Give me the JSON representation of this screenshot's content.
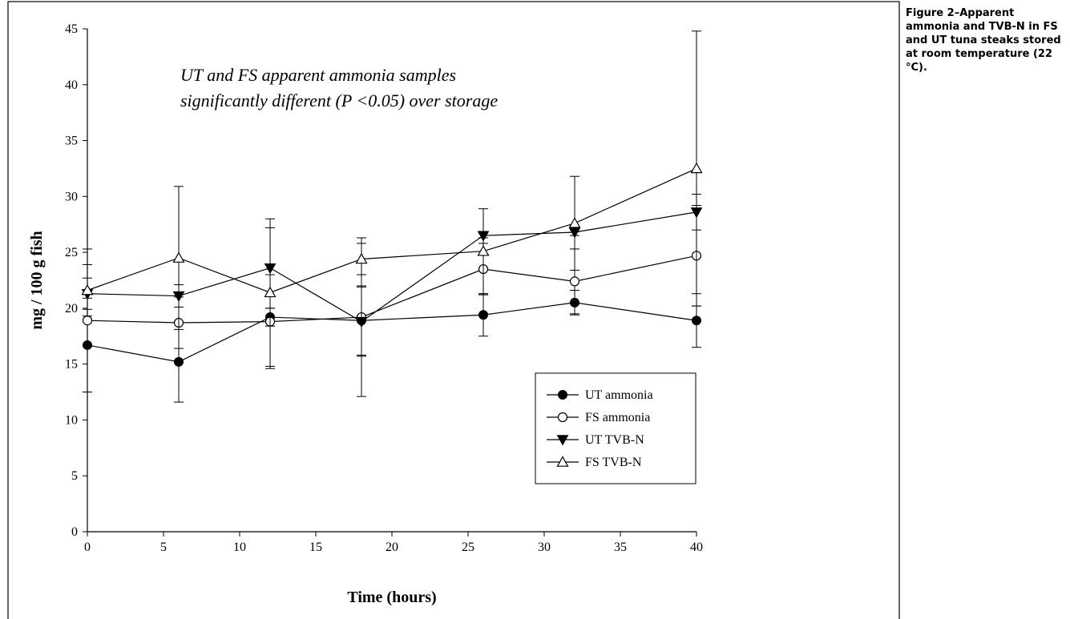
{
  "caption": "Figure 2–Apparent ammonia and TVB-N in FS and UT tuna steaks stored at room temperature (22 °C).",
  "chart_data": {
    "type": "line",
    "xlabel": "Time (hours)",
    "ylabel": "mg / 100 g fish",
    "xlim": [
      0,
      40
    ],
    "ylim": [
      0,
      45
    ],
    "xticks": [
      0,
      5,
      10,
      15,
      20,
      25,
      30,
      35,
      40
    ],
    "yticks": [
      0,
      5,
      10,
      15,
      20,
      25,
      30,
      35,
      40,
      45
    ],
    "grid": false,
    "legend_position": "lower-right",
    "annotation": [
      "UT and FS apparent ammonia samples",
      "significantly different (P <0.05) over storage"
    ],
    "series": [
      {
        "name": "UT ammonia",
        "marker": "circle-filled",
        "x": [
          0,
          6,
          12,
          18,
          26,
          32,
          40
        ],
        "y": [
          16.7,
          15.2,
          19.2,
          18.9,
          19.4,
          20.5,
          18.9
        ],
        "err": [
          4.2,
          3.6,
          0.8,
          3.1,
          1.9,
          1.1,
          2.4
        ]
      },
      {
        "name": "FS ammonia",
        "marker": "circle-open",
        "x": [
          0,
          6,
          12,
          18,
          26,
          32,
          40
        ],
        "y": [
          18.9,
          18.7,
          18.8,
          19.2,
          23.5,
          22.4,
          24.7
        ],
        "err": [
          6.4,
          2.3,
          4.2,
          7.1,
          2.3,
          2.9,
          4.5
        ]
      },
      {
        "name": "UT TVB-N",
        "marker": "triangle-down-filled",
        "x": [
          0,
          6,
          12,
          18,
          26,
          32,
          40
        ],
        "y": [
          21.3,
          21.1,
          23.6,
          18.8,
          26.5,
          26.8,
          28.6
        ],
        "err": [
          1.4,
          1.0,
          3.6,
          3.1,
          0.2,
          0.3,
          1.6
        ]
      },
      {
        "name": "FS TVB-N",
        "marker": "triangle-up-open",
        "x": [
          0,
          6,
          12,
          18,
          26,
          32,
          40
        ],
        "y": [
          21.6,
          24.5,
          21.4,
          24.4,
          25.1,
          27.6,
          32.5
        ],
        "err": [
          2.3,
          6.4,
          6.6,
          1.4,
          3.8,
          4.2,
          12.3
        ]
      }
    ]
  }
}
